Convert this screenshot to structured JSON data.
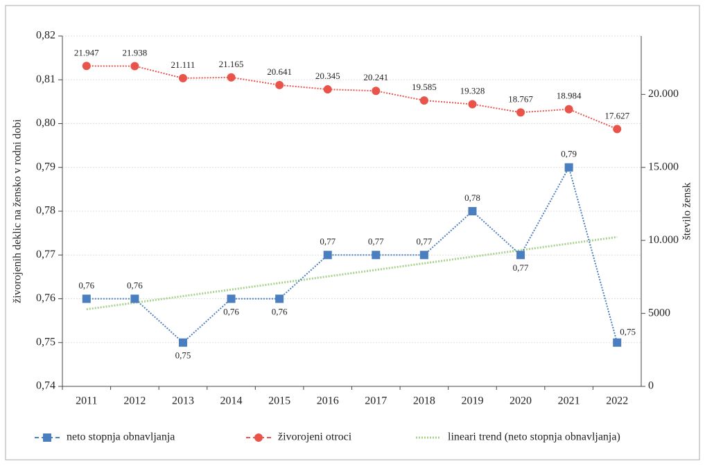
{
  "chart_data": {
    "type": "line",
    "y_label": "živorojenih deklic na žensko v rodni dobi",
    "y2_label": "število žensk",
    "categories": [
      "2011",
      "2012",
      "2013",
      "2014",
      "2015",
      "2016",
      "2017",
      "2018",
      "2019",
      "2020",
      "2021",
      "2022"
    ],
    "series": [
      {
        "name": "neto stopnja obnavljanja",
        "color": "#4a7ebf",
        "marker": "square",
        "values": [
          0.76,
          0.76,
          0.75,
          0.76,
          0.76,
          0.77,
          0.77,
          0.77,
          0.78,
          0.77,
          0.79,
          0.75
        ],
        "value_labels": [
          "0,76",
          "0,76",
          "0,75",
          "0,76",
          "0,76",
          "0,77",
          "0,77",
          "0,77",
          "0,78",
          "0,77",
          "0,79",
          "0,75"
        ]
      },
      {
        "name": "živorojeni otroci",
        "color": "#e8534a",
        "marker": "circle",
        "axis": "y2",
        "values": [
          21947,
          21938,
          21111,
          21165,
          20641,
          20345,
          20241,
          19585,
          19328,
          18767,
          18984,
          17627
        ],
        "value_labels": [
          "21.947",
          "21.938",
          "21.111",
          "21.165",
          "20.641",
          "20.345",
          "20.241",
          "19.585",
          "19.328",
          "18.767",
          "18.984",
          "17.627"
        ]
      },
      {
        "name": "lineari trend (neto stopnja obnavljanja)",
        "color": "#a9d18e",
        "marker": "none",
        "values": [
          0.7576,
          0.7591,
          0.7606,
          0.7621,
          0.7636,
          0.7651,
          0.7666,
          0.7681,
          0.7696,
          0.7711,
          0.7726,
          0.7741
        ]
      }
    ],
    "ylim": [
      0.74,
      0.82
    ],
    "yticks": [
      {
        "value": 0.74,
        "label": "0,74"
      },
      {
        "value": 0.75,
        "label": "0,75"
      },
      {
        "value": 0.76,
        "label": "0,76"
      },
      {
        "value": 0.77,
        "label": "0,77"
      },
      {
        "value": 0.78,
        "label": "0,78"
      },
      {
        "value": 0.79,
        "label": "0,79"
      },
      {
        "value": 0.8,
        "label": "0,80"
      },
      {
        "value": 0.81,
        "label": "0,81"
      },
      {
        "value": 0.82,
        "label": "0,82"
      }
    ],
    "y2lim": [
      0,
      24000
    ],
    "y2ticks": [
      0,
      5000,
      {
        "value": 10000,
        "label": "10.000"
      },
      {
        "value": 15000,
        "label": "15.000"
      },
      {
        "value": 20000,
        "label": "20.000"
      }
    ],
    "grid": true
  }
}
